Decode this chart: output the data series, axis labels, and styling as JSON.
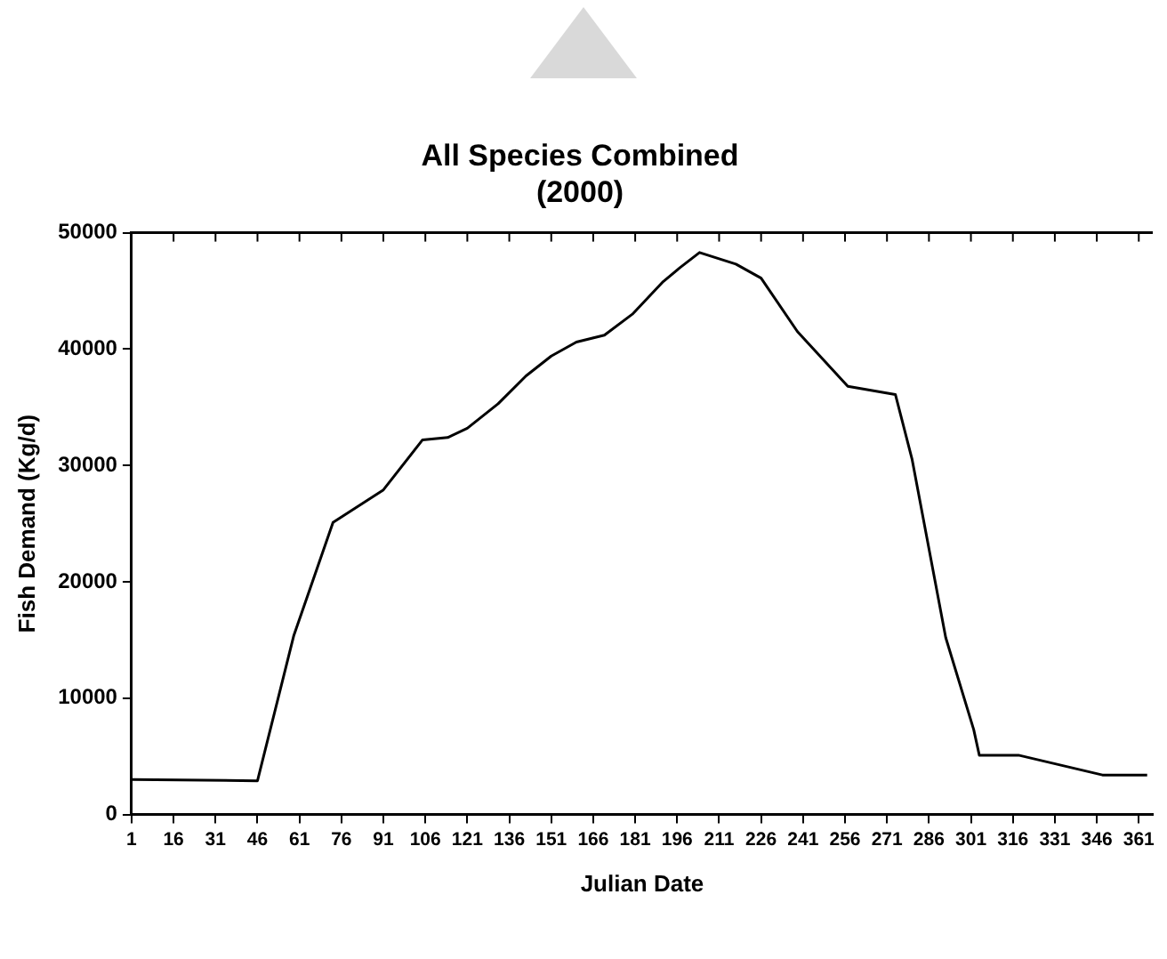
{
  "chart_data": {
    "type": "line",
    "title": [
      "All Species Combined",
      "(2000)"
    ],
    "xlabel": "Julian Date",
    "ylabel": "Fish Demand (Kg/d)",
    "x": [
      1,
      46,
      59,
      73,
      91,
      105,
      114,
      121,
      132,
      142,
      151,
      160,
      170,
      180,
      191,
      197,
      204,
      217,
      226,
      239,
      257,
      274,
      280,
      292,
      302,
      304,
      318,
      348,
      364
    ],
    "series": [
      {
        "color": "#000000",
        "values": [
          3000,
          2900,
          15400,
          25100,
          27900,
          32200,
          32400,
          33200,
          35300,
          37700,
          39400,
          40600,
          41200,
          43000,
          45800,
          47000,
          48300,
          47300,
          46100,
          41500,
          36800,
          36100,
          30500,
          15200,
          7300,
          5100,
          5100,
          3400,
          3400
        ]
      }
    ],
    "xlim": [
      1,
      366
    ],
    "xticks": [
      1,
      16,
      31,
      46,
      61,
      76,
      91,
      106,
      121,
      136,
      151,
      166,
      181,
      196,
      211,
      226,
      241,
      256,
      271,
      286,
      301,
      316,
      331,
      346,
      361
    ],
    "ylim": [
      0,
      50000
    ],
    "yticks": [
      0,
      10000,
      20000,
      30000,
      40000,
      50000
    ],
    "grid": false,
    "legend": false,
    "marker": "none",
    "line_style": "solid"
  }
}
